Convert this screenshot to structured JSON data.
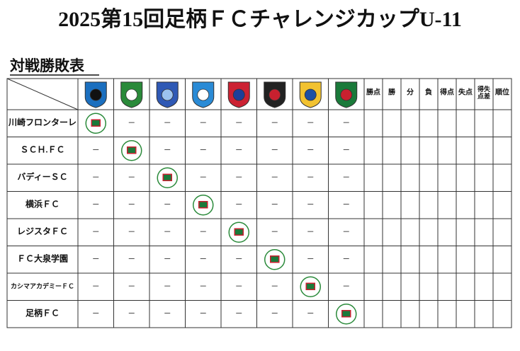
{
  "header": {
    "title": "2025第15回足柄ＦＣチャレンジカップU-11",
    "subtitle": "対戦勝敗表"
  },
  "table": {
    "stat_headers": [
      "勝点",
      "勝",
      "分",
      "負",
      "得点",
      "失点",
      "得失点差",
      "順位"
    ],
    "rows": [
      {
        "name": "川崎フロンターレ",
        "cells": [
          null,
          "－",
          "－",
          "－",
          "－",
          "－",
          "－",
          "－"
        ]
      },
      {
        "name": "ＳＣＨ.ＦＣ",
        "cells": [
          "－",
          null,
          "－",
          "－",
          "－",
          "－",
          "－",
          "－"
        ]
      },
      {
        "name": "バディーＳＣ",
        "cells": [
          "－",
          "－",
          null,
          "－",
          "－",
          "－",
          "－",
          "－"
        ]
      },
      {
        "name": "横浜ＦＣ",
        "cells": [
          "－",
          "－",
          "－",
          null,
          "－",
          "－",
          "－",
          "－"
        ]
      },
      {
        "name": "レジスタＦＣ",
        "cells": [
          "－",
          "－",
          "－",
          "－",
          null,
          "－",
          "－",
          "－"
        ]
      },
      {
        "name": "ＦＣ大泉学園",
        "cells": [
          "－",
          "－",
          "－",
          "－",
          "－",
          null,
          "－",
          "－"
        ]
      },
      {
        "name": "カシマアカデミーＦＣ",
        "cells": [
          "－",
          "－",
          "－",
          "－",
          "－",
          "－",
          null,
          "－"
        ]
      },
      {
        "name": "足柄ＦＣ",
        "cells": [
          "－",
          "－",
          "－",
          "－",
          "－",
          "－",
          "－",
          null
        ]
      }
    ]
  }
}
